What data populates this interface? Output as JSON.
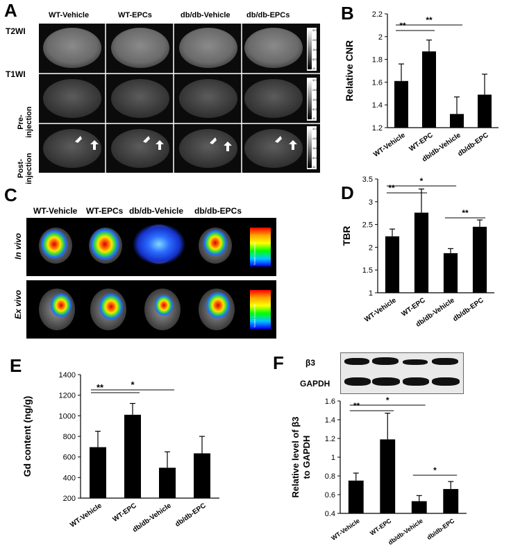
{
  "panels": {
    "a": "A",
    "b": "B",
    "c": "C",
    "d": "D",
    "e": "E",
    "f": "F"
  },
  "panel_a": {
    "columns": [
      "WT-Vehicle",
      "WT-EPCs",
      "db/db-Vehicle",
      "db/db-EPCs"
    ],
    "row_labels": {
      "t2wi": "T2WI",
      "t1wi": "T1WI",
      "pre": "Pre-\ninjection",
      "post": "Post-\ninjection"
    },
    "scale_ticks": [
      "32767",
      "24586",
      "16406",
      "8225",
      "44"
    ]
  },
  "panel_c": {
    "columns": [
      "WT-Vehicle",
      "WT-EPCs",
      "db/db-Vehicle",
      "db/db-EPCs"
    ],
    "row_labels": {
      "in_vivo": "In vivo",
      "ex_vivo": "Ex vivo"
    },
    "colorbar_label": "Scaled Counts/Sec"
  },
  "panel_f_blot": {
    "beta3": "β3",
    "gapdh": "GAPDH"
  },
  "chart_data": [
    {
      "id": "B",
      "type": "bar",
      "categories": [
        "WT-Vehicle",
        "WT-EPC",
        "db/db-Vehicle",
        "db/db-EPC"
      ],
      "values": [
        1.61,
        1.87,
        1.32,
        1.49
      ],
      "errors": [
        0.15,
        0.1,
        0.15,
        0.18
      ],
      "ylabel": "Relative CNR",
      "ylim": [
        1.2,
        2.2
      ],
      "yticks": [
        "1.2",
        "1.4",
        "1.6",
        "1.8",
        "2",
        "2.2"
      ],
      "significance": [
        {
          "from": 0,
          "to": 1,
          "label": "**"
        },
        {
          "from": 0,
          "to": 2,
          "label": "**"
        }
      ]
    },
    {
      "id": "D",
      "type": "bar",
      "categories": [
        "WT-Vehicle",
        "WT-EPC",
        "db/db-Vehicle",
        "db/db-EPC"
      ],
      "values": [
        2.24,
        2.76,
        1.87,
        2.45
      ],
      "errors": [
        0.16,
        0.52,
        0.1,
        0.15
      ],
      "ylabel": "TBR",
      "ylim": [
        1,
        3.5
      ],
      "yticks": [
        "1",
        "1.5",
        "2",
        "2.5",
        "3",
        "3.5"
      ],
      "significance": [
        {
          "from": 0,
          "to": 1,
          "label": "**"
        },
        {
          "from": 0,
          "to": 2,
          "label": "*"
        },
        {
          "from": 2,
          "to": 3,
          "label": "**"
        }
      ]
    },
    {
      "id": "E",
      "type": "bar",
      "categories": [
        "WT-Vehicle",
        "WT-EPC",
        "db/db-Vehicle",
        "db/db-EPC"
      ],
      "values": [
        695,
        1010,
        495,
        635
      ],
      "errors": [
        155,
        110,
        155,
        165
      ],
      "ylabel": "Gd content (ng/g)",
      "ylim": [
        200,
        1400
      ],
      "yticks": [
        "200",
        "400",
        "600",
        "800",
        "1000",
        "1200",
        "1400"
      ],
      "significance": [
        {
          "from": 0,
          "to": 1,
          "label": "**"
        },
        {
          "from": 0,
          "to": 2,
          "label": "*"
        }
      ]
    },
    {
      "id": "F",
      "type": "bar",
      "categories": [
        "WT-Vehicle",
        "WT-EPC",
        "db/db-Vehicle",
        "db/db-EPC"
      ],
      "values": [
        0.75,
        1.19,
        0.53,
        0.66
      ],
      "errors": [
        0.08,
        0.28,
        0.06,
        0.08
      ],
      "ylabel": "Relative level of β3\nto GAPDH",
      "ylim": [
        0.4,
        1.6
      ],
      "yticks": [
        "0.4",
        "0.6",
        "0.8",
        "1",
        "1.2",
        "1.4",
        "1.6"
      ],
      "significance": [
        {
          "from": 0,
          "to": 1,
          "label": "**"
        },
        {
          "from": 0,
          "to": 2,
          "label": "*"
        },
        {
          "from": 2,
          "to": 3,
          "label": "*"
        }
      ]
    }
  ]
}
